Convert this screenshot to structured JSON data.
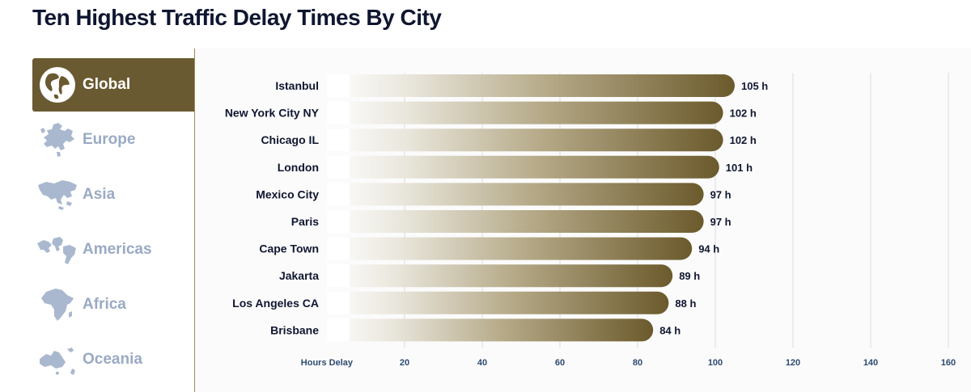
{
  "title": "Ten Highest Traffic Delay Times By City",
  "sidebar": {
    "items": [
      {
        "label": "Global",
        "icon": "globe-icon",
        "active": true
      },
      {
        "label": "Europe",
        "icon": "europe-map-icon",
        "active": false
      },
      {
        "label": "Asia",
        "icon": "asia-map-icon",
        "active": false
      },
      {
        "label": "Americas",
        "icon": "americas-map-icon",
        "active": false
      },
      {
        "label": "Africa",
        "icon": "africa-map-icon",
        "active": false
      },
      {
        "label": "Oceania",
        "icon": "oceania-map-icon",
        "active": false
      }
    ]
  },
  "colors": {
    "accent": "#6a5a31",
    "bar_dark": "#6b5a2c",
    "bar_light": "#ffffff",
    "inactive_label": "#9aaac4",
    "text": "#0f1630",
    "tick": "#2c4a72"
  },
  "chart_data": {
    "type": "bar",
    "orientation": "horizontal",
    "categories": [
      "Istanbul",
      "New York City NY",
      "Chicago IL",
      "London",
      "Mexico City",
      "Paris",
      "Cape Town",
      "Jakarta",
      "Los Angeles CA",
      "Brisbane"
    ],
    "values": [
      105,
      102,
      102,
      101,
      97,
      97,
      94,
      89,
      88,
      84
    ],
    "value_labels": [
      "105 h",
      "102 h",
      "102 h",
      "101 h",
      "97 h",
      "97 h",
      "94 h",
      "89 h",
      "88 h",
      "84 h"
    ],
    "xlabel": "Hours Delay",
    "xticks": [
      20,
      40,
      60,
      80,
      100,
      120,
      140,
      160
    ],
    "xlim": [
      0,
      160
    ],
    "grid": true
  }
}
